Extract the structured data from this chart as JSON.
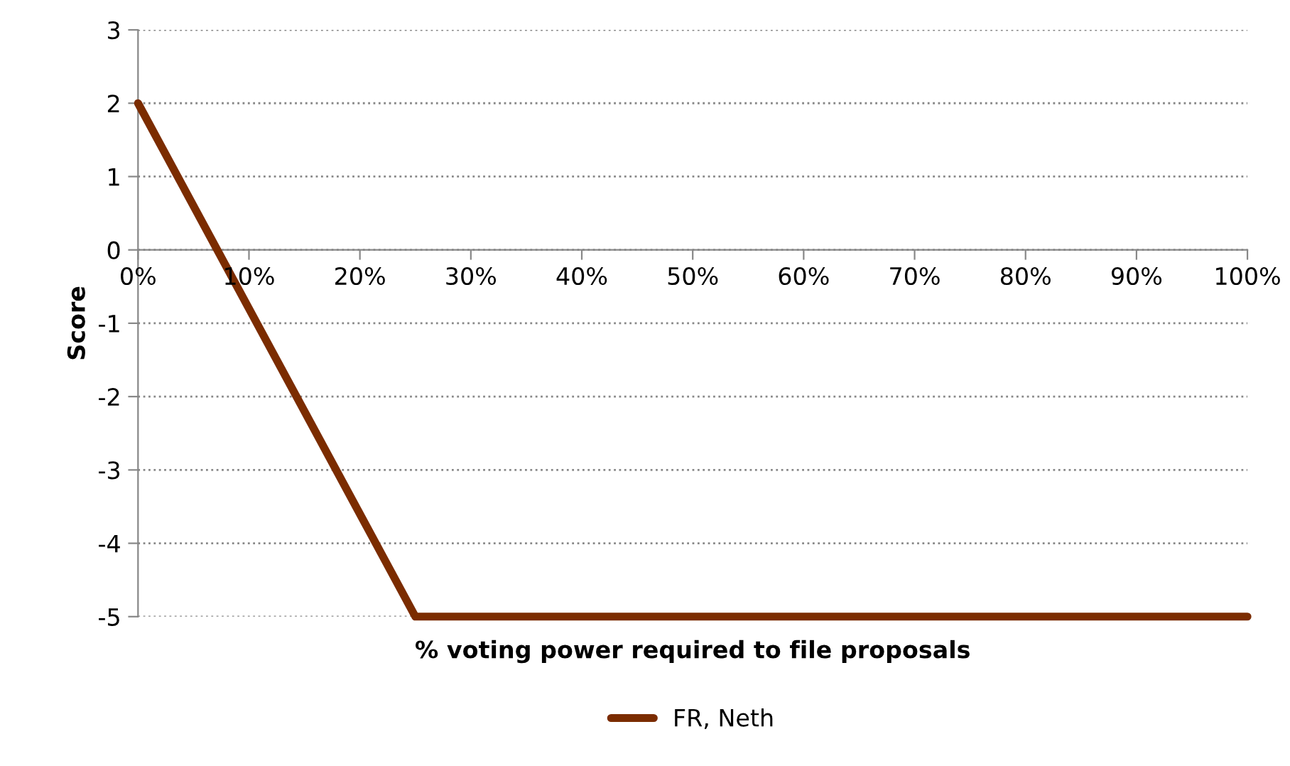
{
  "chart_data": {
    "type": "line",
    "xlabel": "% voting power required to file proposals",
    "ylabel": "Score",
    "x": [
      0,
      25,
      100
    ],
    "series": [
      {
        "name": "FR, Neth",
        "color": "#7b2c00",
        "values": [
          2,
          -5,
          -5
        ]
      }
    ],
    "xlim": [
      0,
      100
    ],
    "xticks": [
      {
        "value": 0,
        "label": "0%"
      },
      {
        "value": 10,
        "label": "10%"
      },
      {
        "value": 20,
        "label": "20%"
      },
      {
        "value": 30,
        "label": "30%"
      },
      {
        "value": 40,
        "label": "40%"
      },
      {
        "value": 50,
        "label": "50%"
      },
      {
        "value": 60,
        "label": "60%"
      },
      {
        "value": 70,
        "label": "70%"
      },
      {
        "value": 80,
        "label": "80%"
      },
      {
        "value": 90,
        "label": "90%"
      },
      {
        "value": 100,
        "label": "100%"
      }
    ],
    "ylim": [
      -5,
      3
    ],
    "yticks": [
      -5,
      -4,
      -3,
      -2,
      -1,
      0,
      1,
      2,
      3
    ],
    "grid": "y",
    "legend": "bottom",
    "marker": "none",
    "line_style": "solid"
  }
}
